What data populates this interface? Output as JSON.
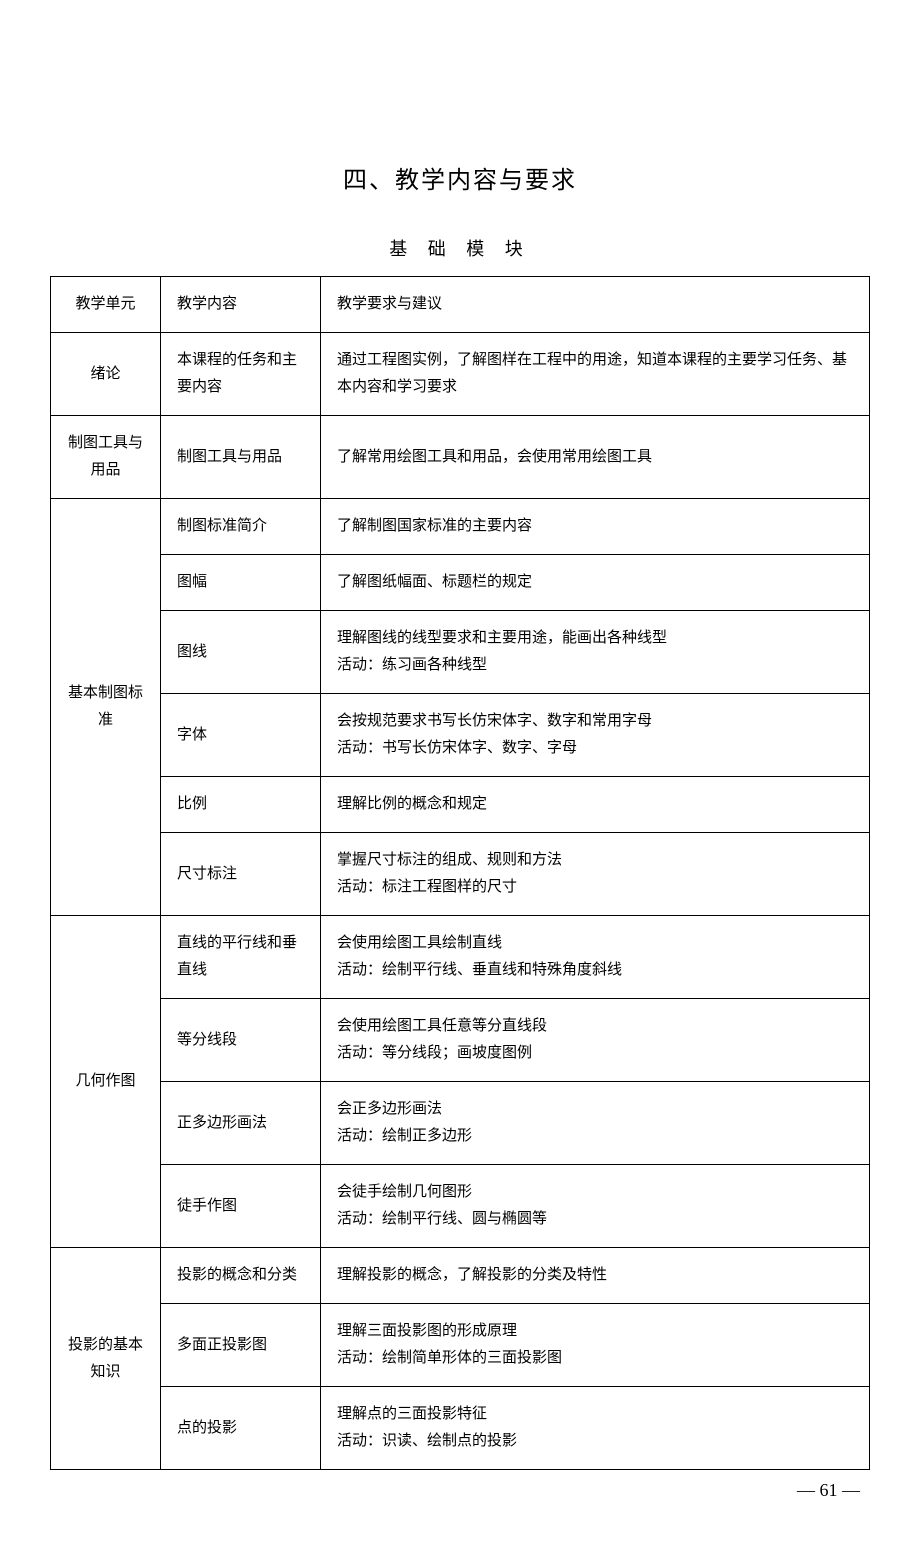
{
  "section_title": "四、教学内容与要求",
  "subtitle": "基 础 模 块",
  "page_number": "— 61 —",
  "headers": {
    "unit": "教学单元",
    "content": "教学内容",
    "requirement": "教学要求与建议"
  },
  "rows": [
    {
      "unit": "绪论",
      "unit_rowspan": 1,
      "content": "本课程的任务和主要内容",
      "requirement": "通过工程图实例，了解图样在工程中的用途，知道本课程的主要学习任务、基本内容和学习要求"
    },
    {
      "unit": "制图工具与用品",
      "unit_rowspan": 1,
      "content": "制图工具与用品",
      "requirement": "了解常用绘图工具和用品，会使用常用绘图工具"
    },
    {
      "unit": "基本制图标准",
      "unit_rowspan": 6,
      "content": "制图标准简介",
      "requirement": "了解制图国家标准的主要内容"
    },
    {
      "content": "图幅",
      "requirement": "了解图纸幅面、标题栏的规定"
    },
    {
      "content": "图线",
      "requirement": "理解图线的线型要求和主要用途，能画出各种线型\n活动：练习画各种线型"
    },
    {
      "content": "字体",
      "requirement": "会按规范要求书写长仿宋体字、数字和常用字母\n活动：书写长仿宋体字、数字、字母"
    },
    {
      "content": "比例",
      "requirement": "理解比例的概念和规定"
    },
    {
      "content": "尺寸标注",
      "requirement": "掌握尺寸标注的组成、规则和方法\n活动：标注工程图样的尺寸"
    },
    {
      "unit": "几何作图",
      "unit_rowspan": 4,
      "content": "直线的平行线和垂直线",
      "requirement": "会使用绘图工具绘制直线\n活动：绘制平行线、垂直线和特殊角度斜线"
    },
    {
      "content": "等分线段",
      "requirement": "会使用绘图工具任意等分直线段\n活动：等分线段；画坡度图例"
    },
    {
      "content": "正多边形画法",
      "requirement": "会正多边形画法\n活动：绘制正多边形"
    },
    {
      "content": "徒手作图",
      "requirement": "会徒手绘制几何图形\n活动：绘制平行线、圆与椭圆等"
    },
    {
      "unit": "投影的基本知识",
      "unit_rowspan": 3,
      "content": "投影的概念和分类",
      "requirement": "理解投影的概念，了解投影的分类及特性"
    },
    {
      "content": "多面正投影图",
      "requirement": "理解三面投影图的形成原理\n活动：绘制简单形体的三面投影图"
    },
    {
      "content": "点的投影",
      "requirement": "理解点的三面投影特征\n活动：识读、绘制点的投影"
    }
  ]
}
